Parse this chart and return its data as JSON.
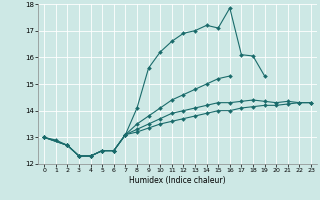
{
  "title": "",
  "xlabel": "Humidex (Indice chaleur)",
  "xlim": [
    -0.5,
    23.5
  ],
  "ylim": [
    12,
    18
  ],
  "xticks": [
    0,
    1,
    2,
    3,
    4,
    5,
    6,
    7,
    8,
    9,
    10,
    11,
    12,
    13,
    14,
    15,
    16,
    17,
    18,
    19,
    20,
    21,
    22,
    23
  ],
  "yticks": [
    12,
    13,
    14,
    15,
    16,
    17,
    18
  ],
  "bg_color": "#cde8e5",
  "grid_color": "#ffffff",
  "line_color": "#1a6b6b",
  "series": [
    {
      "x": [
        0,
        1,
        2,
        3,
        4,
        5,
        6,
        7,
        8,
        9,
        10,
        11,
        12,
        13,
        14,
        15,
        16,
        17,
        18,
        19
      ],
      "y": [
        13.0,
        12.9,
        12.7,
        12.3,
        12.3,
        12.5,
        12.5,
        13.1,
        14.1,
        15.6,
        16.2,
        16.6,
        16.9,
        17.0,
        17.2,
        17.1,
        17.85,
        16.1,
        16.05,
        15.3
      ]
    },
    {
      "x": [
        0,
        2,
        3,
        4,
        5,
        6,
        7,
        8,
        9,
        10,
        11,
        12,
        13,
        14,
        15,
        16
      ],
      "y": [
        13.0,
        12.7,
        12.3,
        12.3,
        12.5,
        12.5,
        13.1,
        13.5,
        13.8,
        14.1,
        14.4,
        14.6,
        14.8,
        15.0,
        15.2,
        15.3
      ]
    },
    {
      "x": [
        0,
        2,
        3,
        4,
        5,
        6,
        7,
        8,
        9,
        10,
        11,
        12,
        13,
        14,
        15,
        16,
        17,
        18,
        19,
        20,
        21,
        22,
        23
      ],
      "y": [
        13.0,
        12.7,
        12.3,
        12.3,
        12.5,
        12.5,
        13.1,
        13.3,
        13.5,
        13.7,
        13.9,
        14.0,
        14.1,
        14.2,
        14.3,
        14.3,
        14.35,
        14.4,
        14.35,
        14.3,
        14.35,
        14.3,
        14.3
      ]
    },
    {
      "x": [
        0,
        2,
        3,
        4,
        5,
        6,
        7,
        8,
        9,
        10,
        11,
        12,
        13,
        14,
        15,
        16,
        17,
        18,
        19,
        20,
        21,
        22,
        23
      ],
      "y": [
        13.0,
        12.7,
        12.3,
        12.3,
        12.5,
        12.5,
        13.1,
        13.2,
        13.35,
        13.5,
        13.6,
        13.7,
        13.8,
        13.9,
        14.0,
        14.0,
        14.1,
        14.15,
        14.2,
        14.2,
        14.25,
        14.3,
        14.3
      ]
    }
  ]
}
